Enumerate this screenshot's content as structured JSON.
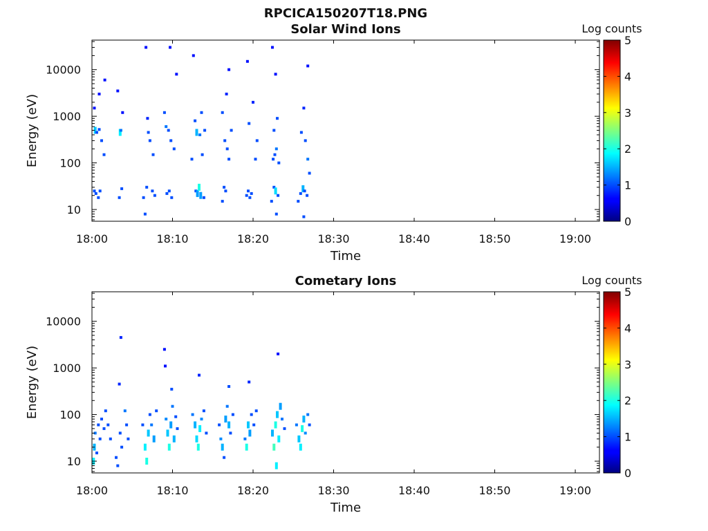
{
  "figure_title": "RPCICA150207T18.PNG",
  "chart_data": [
    {
      "type": "heatmap",
      "title": "Solar Wind Ions",
      "xlabel": "Time",
      "ylabel": "Energy (eV)",
      "y_scale": "log",
      "x_range_minutes_after_1800": [
        0,
        63
      ],
      "ylim": [
        5.6,
        43000
      ],
      "x_tick_labels": [
        "18:00",
        "18:10",
        "18:20",
        "18:30",
        "18:40",
        "18:50",
        "19:00"
      ],
      "y_tick_values": [
        10,
        100,
        1000,
        10000
      ],
      "y_tick_labels": [
        "10",
        "100",
        "1000",
        "10000"
      ],
      "colorbar": {
        "label": "Log counts",
        "ticks": [
          "0",
          "1",
          "2",
          "3",
          "4",
          "5"
        ],
        "range": [
          0,
          5
        ],
        "colormap": "jet"
      },
      "data_coverage_end_minute": 27.5,
      "notes": "Sparse counts (mostly 0-1 log counts); brightest ~2 near 18:03, 18:08, 18:13, 18:23; densest bands near 12-30 eV and 300-800 eV",
      "points": [
        [
          0.3,
          25,
          1
        ],
        [
          0.5,
          22,
          1
        ],
        [
          0.8,
          18,
          1
        ],
        [
          1.0,
          25,
          1
        ],
        [
          0.4,
          500,
          1.6
        ],
        [
          0.6,
          450,
          1
        ],
        [
          0.9,
          520,
          1
        ],
        [
          1.2,
          300,
          1
        ],
        [
          1.5,
          150,
          1
        ],
        [
          0.3,
          1500,
          0.7
        ],
        [
          0.9,
          3000,
          0.7
        ],
        [
          1.6,
          6000,
          0.7
        ],
        [
          3.4,
          18,
          1
        ],
        [
          3.5,
          450,
          1.8
        ],
        [
          3.6,
          500,
          1.2
        ],
        [
          3.7,
          28,
          1
        ],
        [
          3.2,
          3500,
          0.7
        ],
        [
          3.8,
          1200,
          0.7
        ],
        [
          6.4,
          18,
          1
        ],
        [
          6.6,
          8,
          1
        ],
        [
          6.8,
          30,
          1
        ],
        [
          7.0,
          450,
          1
        ],
        [
          6.9,
          900,
          0.8
        ],
        [
          7.2,
          300,
          1
        ],
        [
          7.5,
          25,
          1
        ],
        [
          7.8,
          20,
          1
        ],
        [
          7.6,
          150,
          1
        ],
        [
          6.7,
          30000,
          0.7
        ],
        [
          9.3,
          22,
          1
        ],
        [
          9.6,
          25,
          1
        ],
        [
          9.9,
          18,
          1
        ],
        [
          9.2,
          600,
          1.2
        ],
        [
          9.5,
          500,
          1
        ],
        [
          9.8,
          300,
          1
        ],
        [
          10.2,
          200,
          1
        ],
        [
          9.0,
          1200,
          1
        ],
        [
          9.7,
          30000,
          0.7
        ],
        [
          10.5,
          8000,
          0.7
        ],
        [
          12.4,
          120,
          1
        ],
        [
          12.9,
          25,
          1
        ],
        [
          13.1,
          22,
          1.4
        ],
        [
          13.3,
          30,
          2
        ],
        [
          13.5,
          20,
          1.4
        ],
        [
          13.0,
          450,
          1.5
        ],
        [
          13.4,
          400,
          1.2
        ],
        [
          12.8,
          800,
          1
        ],
        [
          13.6,
          1200,
          1
        ],
        [
          13.7,
          150,
          1
        ],
        [
          13.9,
          18,
          1
        ],
        [
          14.0,
          500,
          1
        ],
        [
          12.6,
          20000,
          0.7
        ],
        [
          16.2,
          15,
          1
        ],
        [
          16.4,
          30,
          1
        ],
        [
          16.6,
          25,
          1
        ],
        [
          16.8,
          200,
          1
        ],
        [
          16.5,
          300,
          1
        ],
        [
          17.0,
          120,
          1
        ],
        [
          17.3,
          500,
          1
        ],
        [
          16.7,
          3000,
          0.8
        ],
        [
          17.0,
          10000,
          0.7
        ],
        [
          16.2,
          1200,
          1
        ],
        [
          19.2,
          20,
          1
        ],
        [
          19.4,
          25,
          1
        ],
        [
          19.6,
          18,
          1
        ],
        [
          19.8,
          22,
          1
        ],
        [
          19.5,
          700,
          1
        ],
        [
          20.0,
          2000,
          0.8
        ],
        [
          20.3,
          120,
          1
        ],
        [
          20.5,
          300,
          1
        ],
        [
          19.3,
          15000,
          0.7
        ],
        [
          22.3,
          15,
          1
        ],
        [
          22.6,
          30,
          1
        ],
        [
          22.8,
          25,
          1.7
        ],
        [
          22.9,
          8,
          1
        ],
        [
          23.1,
          20,
          1
        ],
        [
          22.5,
          120,
          1
        ],
        [
          22.7,
          150,
          1
        ],
        [
          22.9,
          200,
          1.2
        ],
        [
          23.2,
          100,
          1
        ],
        [
          22.6,
          500,
          1
        ],
        [
          23.0,
          900,
          1
        ],
        [
          22.8,
          8000,
          0.7
        ],
        [
          22.4,
          30000,
          0.7
        ],
        [
          25.6,
          15,
          1
        ],
        [
          25.9,
          22,
          1
        ],
        [
          26.2,
          28,
          1.5
        ],
        [
          26.4,
          25,
          1
        ],
        [
          26.7,
          20,
          1
        ],
        [
          26.3,
          7,
          1
        ],
        [
          26.0,
          450,
          1
        ],
        [
          26.5,
          300,
          1
        ],
        [
          26.8,
          120,
          1.2
        ],
        [
          27.0,
          60,
          1
        ],
        [
          26.3,
          1500,
          0.8
        ],
        [
          26.8,
          12000,
          0.7
        ]
      ]
    },
    {
      "type": "heatmap",
      "title": "Cometary Ions",
      "xlabel": "Time",
      "ylabel": "Energy (eV)",
      "y_scale": "log",
      "x_range_minutes_after_1800": [
        0,
        63
      ],
      "ylim": [
        5.6,
        43000
      ],
      "x_tick_labels": [
        "18:00",
        "18:10",
        "18:20",
        "18:30",
        "18:40",
        "18:50",
        "19:00"
      ],
      "y_tick_values": [
        10,
        100,
        1000,
        10000
      ],
      "y_tick_labels": [
        "10",
        "100",
        "1000",
        "10000"
      ],
      "colorbar": {
        "label": "Log counts",
        "ticks": [
          "0",
          "1",
          "2",
          "3",
          "4",
          "5"
        ],
        "range": [
          0,
          5
        ],
        "colormap": "jet"
      },
      "data_coverage_end_minute": 27.3,
      "notes": "Counts concentrated at 8-200 eV in bursts every ~3 minutes; peaks reach ~2-2.5 log counts",
      "points": [
        [
          0.2,
          10,
          1.8
        ],
        [
          0.3,
          20,
          1.5
        ],
        [
          0.4,
          40,
          1.2
        ],
        [
          0.6,
          15,
          1
        ],
        [
          0.8,
          60,
          1
        ],
        [
          1.0,
          30,
          1
        ],
        [
          1.2,
          80,
          1
        ],
        [
          1.5,
          50,
          1
        ],
        [
          1.7,
          120,
          1
        ],
        [
          2.0,
          60,
          1
        ],
        [
          2.3,
          30,
          1
        ],
        [
          3.0,
          12,
          1
        ],
        [
          3.2,
          8,
          1
        ],
        [
          3.5,
          40,
          1
        ],
        [
          3.7,
          20,
          1
        ],
        [
          4.1,
          120,
          1.2
        ],
        [
          4.3,
          60,
          1
        ],
        [
          4.5,
          30,
          1
        ],
        [
          3.6,
          4500,
          0.8
        ],
        [
          3.4,
          450,
          0.8
        ],
        [
          6.3,
          60,
          1
        ],
        [
          6.6,
          20,
          1.8
        ],
        [
          6.8,
          10,
          2
        ],
        [
          7.0,
          40,
          1.6
        ],
        [
          7.2,
          100,
          1
        ],
        [
          7.4,
          60,
          1.2
        ],
        [
          7.7,
          30,
          1.4
        ],
        [
          8.0,
          120,
          1
        ],
        [
          9.2,
          80,
          1.3
        ],
        [
          9.4,
          40,
          1.6
        ],
        [
          9.6,
          20,
          2
        ],
        [
          9.8,
          60,
          1.4
        ],
        [
          10.0,
          150,
          1.2
        ],
        [
          10.2,
          30,
          1.5
        ],
        [
          10.4,
          90,
          1
        ],
        [
          10.6,
          50,
          1
        ],
        [
          9.0,
          2500,
          0.7
        ],
        [
          9.1,
          1100,
          0.7
        ],
        [
          9.9,
          350,
          1
        ],
        [
          12.5,
          100,
          1.2
        ],
        [
          12.8,
          60,
          1.5
        ],
        [
          13.0,
          30,
          1.7
        ],
        [
          13.2,
          20,
          2
        ],
        [
          13.4,
          50,
          1.8
        ],
        [
          13.6,
          80,
          1.3
        ],
        [
          13.9,
          120,
          1
        ],
        [
          14.2,
          40,
          1
        ],
        [
          13.3,
          700,
          0.8
        ],
        [
          15.8,
          60,
          1
        ],
        [
          16.0,
          30,
          1.3
        ],
        [
          16.2,
          20,
          1.5
        ],
        [
          16.4,
          12,
          1
        ],
        [
          16.6,
          80,
          1.4
        ],
        [
          16.8,
          150,
          1.2
        ],
        [
          17.0,
          60,
          1.5
        ],
        [
          17.2,
          40,
          1
        ],
        [
          17.5,
          100,
          1
        ],
        [
          17.0,
          400,
          1
        ],
        [
          19.0,
          30,
          1.2
        ],
        [
          19.2,
          20,
          2
        ],
        [
          19.4,
          60,
          1.6
        ],
        [
          19.6,
          40,
          1.4
        ],
        [
          19.8,
          100,
          1
        ],
        [
          20.1,
          60,
          1
        ],
        [
          20.4,
          120,
          1
        ],
        [
          19.5,
          500,
          0.8
        ],
        [
          22.4,
          40,
          1.5
        ],
        [
          22.6,
          20,
          2.2
        ],
        [
          22.8,
          60,
          2
        ],
        [
          23.0,
          100,
          1.6
        ],
        [
          23.2,
          30,
          1.8
        ],
        [
          23.4,
          150,
          1.4
        ],
        [
          23.6,
          80,
          1.2
        ],
        [
          23.9,
          50,
          1
        ],
        [
          22.9,
          8,
          1.8
        ],
        [
          23.1,
          2000,
          0.7
        ],
        [
          25.4,
          60,
          1.2
        ],
        [
          25.7,
          30,
          1.6
        ],
        [
          25.9,
          20,
          1.8
        ],
        [
          26.1,
          50,
          2
        ],
        [
          26.3,
          80,
          1.5
        ],
        [
          26.5,
          40,
          1.3
        ],
        [
          26.8,
          100,
          1.2
        ],
        [
          27.0,
          60,
          1
        ]
      ]
    }
  ]
}
